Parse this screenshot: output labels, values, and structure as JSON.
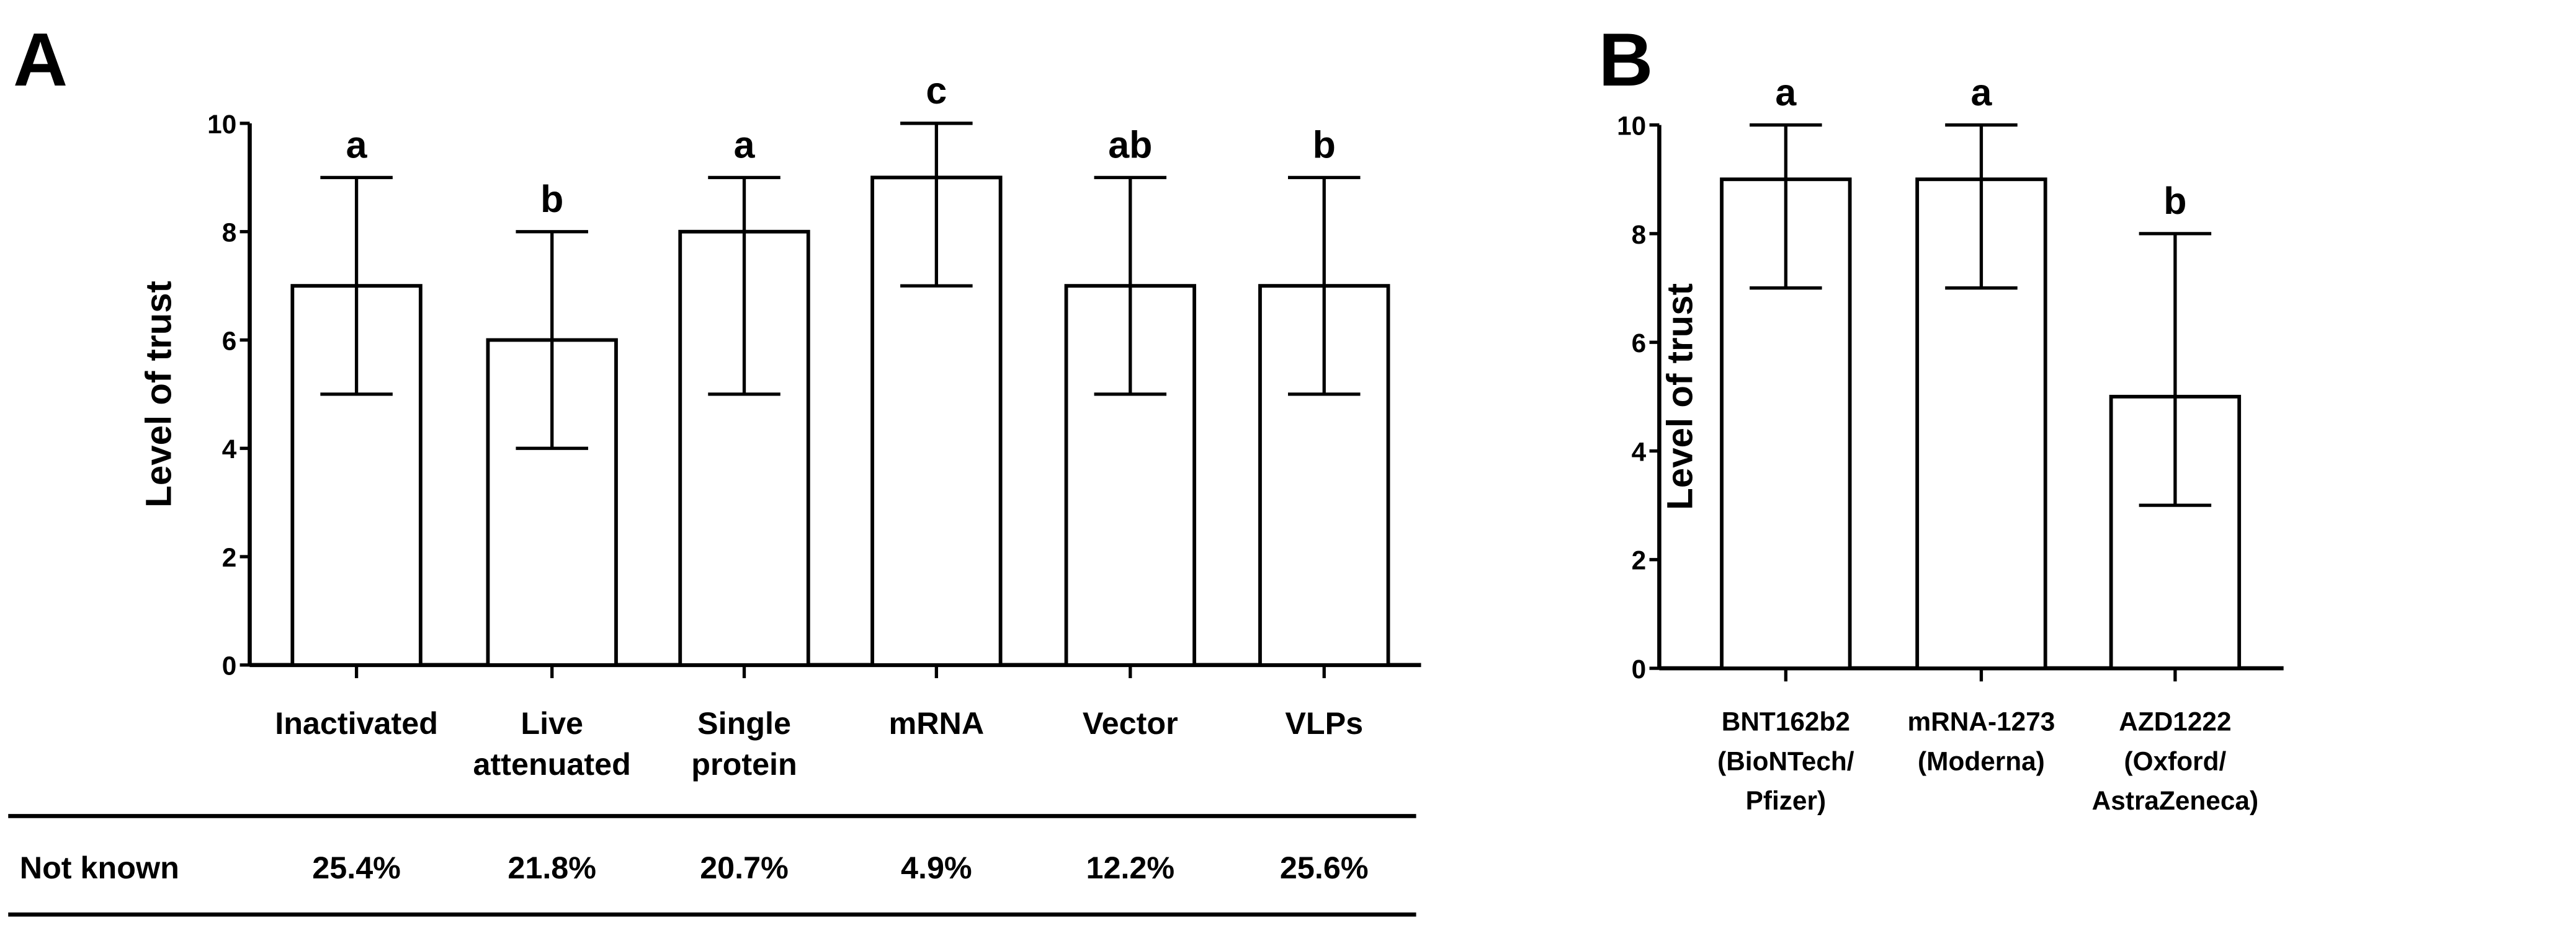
{
  "chart_data": [
    {
      "type": "bar",
      "panel_label": "A",
      "ylabel": "Level of trust",
      "xlabel": "",
      "ylim": [
        0,
        10
      ],
      "yticks": [
        "0",
        "2",
        "4",
        "6",
        "8",
        "10"
      ],
      "categories": [
        [
          "Inactivated"
        ],
        [
          "Live",
          "attenuated"
        ],
        [
          "Single",
          "protein"
        ],
        [
          "mRNA"
        ],
        [
          "Vector"
        ],
        [
          "VLPs"
        ]
      ],
      "values": [
        7,
        6,
        8,
        9,
        7,
        7
      ],
      "error_low": [
        5,
        4,
        5,
        7,
        5,
        5
      ],
      "error_high": [
        9,
        8,
        9,
        10,
        9,
        9
      ],
      "significance": [
        "a",
        "b",
        "a",
        "c",
        "ab",
        "b"
      ],
      "table": {
        "row_label": "Not known",
        "values": [
          "25.4%",
          "21.8%",
          "20.7%",
          "4.9%",
          "12.2%",
          "25.6%"
        ]
      }
    },
    {
      "type": "bar",
      "panel_label": "B",
      "ylabel": "Level of trust",
      "xlabel": "",
      "ylim": [
        0,
        10
      ],
      "yticks": [
        "0",
        "2",
        "4",
        "6",
        "8",
        "10"
      ],
      "categories": [
        [
          "BNT162b2",
          "(BioNTech/",
          "Pfizer)"
        ],
        [
          "mRNA-1273",
          "(Moderna)"
        ],
        [
          "AZD1222",
          "(Oxford/",
          "AstraZeneca)"
        ]
      ],
      "values": [
        9,
        9,
        5
      ],
      "error_low": [
        7,
        7,
        3
      ],
      "error_high": [
        10,
        10,
        8
      ],
      "significance": [
        "a",
        "a",
        "b"
      ]
    }
  ]
}
